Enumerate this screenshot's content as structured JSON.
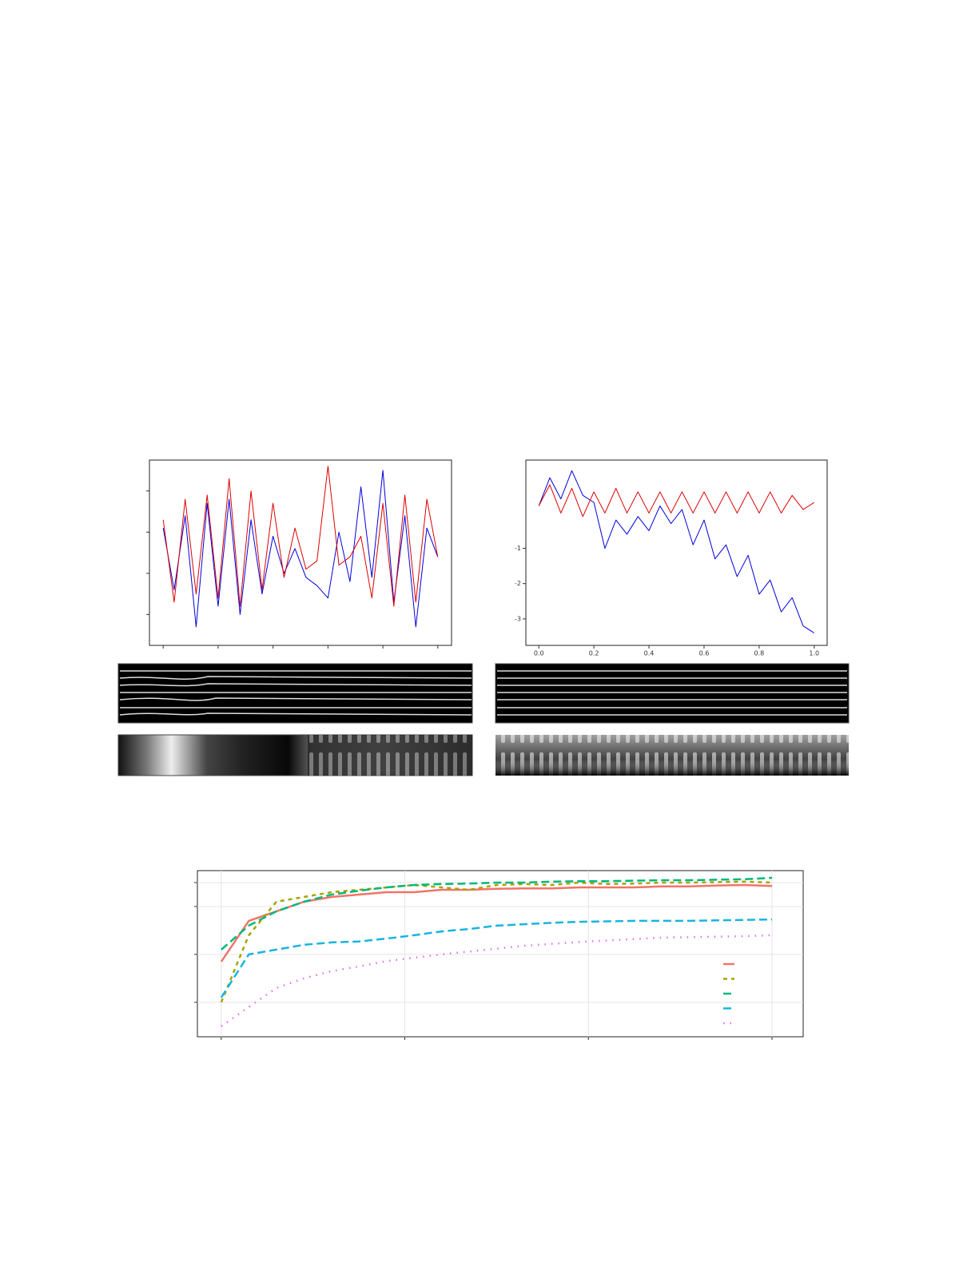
{
  "chart_data": [
    {
      "type": "line",
      "tick_labels": false,
      "x": [
        0,
        4,
        8,
        12,
        16,
        20,
        24,
        28,
        32,
        36,
        40,
        44,
        48,
        52,
        56,
        60,
        64,
        68,
        72,
        76,
        80,
        84,
        88,
        92,
        96,
        100
      ],
      "xlim": [
        -5,
        105
      ],
      "ylim": [
        -2.25,
        2.25
      ],
      "xticks": [
        0,
        20,
        40,
        60,
        80,
        100
      ],
      "yticks": [
        -1.5,
        -0.5,
        0.5,
        1.5
      ],
      "series": [
        {
          "color": "#0000dd",
          "values": [
            0.6,
            -0.9,
            0.9,
            -1.8,
            1.2,
            -1.3,
            1.3,
            -1.5,
            0.8,
            -1.0,
            0.4,
            -0.5,
            0.1,
            -0.6,
            -0.8,
            -1.1,
            0.5,
            -0.7,
            1.6,
            -0.6,
            2.0,
            -1.2,
            0.9,
            -1.8,
            0.6,
            -0.1
          ]
        },
        {
          "color": "#dd0000",
          "values": [
            0.8,
            -1.2,
            1.3,
            -1.0,
            1.4,
            -1.1,
            1.8,
            -1.3,
            1.5,
            -0.9,
            1.2,
            -0.6,
            0.6,
            -0.4,
            -0.2,
            2.1,
            -0.3,
            -0.1,
            0.4,
            -1.1,
            1.2,
            -1.3,
            1.4,
            -1.2,
            1.3,
            -0.1
          ]
        }
      ]
    },
    {
      "type": "line",
      "tick_labels": true,
      "x": [
        0,
        0.04,
        0.08,
        0.12,
        0.16,
        0.2,
        0.24,
        0.28,
        0.32,
        0.36,
        0.4,
        0.44,
        0.48,
        0.52,
        0.56,
        0.6,
        0.64,
        0.68,
        0.72,
        0.76,
        0.8,
        0.84,
        0.88,
        0.92,
        0.96,
        1.0
      ],
      "xlim": [
        -0.047,
        1.047
      ],
      "ylim": [
        -3.75,
        1.5
      ],
      "xticks": [
        {
          "value": 0,
          "label": "0.0"
        },
        0.2,
        0.4,
        0.6,
        0.8,
        {
          "value": 1,
          "label": "1.0"
        }
      ],
      "yticks": [
        -1,
        -2,
        -3
      ],
      "series": [
        {
          "color": "#0000dd",
          "values": [
            0.2,
            1.0,
            0.4,
            1.2,
            0.5,
            0.3,
            -1.0,
            -0.2,
            -0.6,
            -0.1,
            -0.5,
            0.2,
            -0.3,
            0.1,
            -0.9,
            -0.2,
            -1.3,
            -0.9,
            -1.8,
            -1.2,
            -2.3,
            -1.9,
            -2.8,
            -2.4,
            -3.2,
            -3.4
          ]
        },
        {
          "color": "#dd0000",
          "values": [
            0.2,
            0.8,
            0.0,
            0.7,
            -0.1,
            0.6,
            0.0,
            0.7,
            0.0,
            0.6,
            0.0,
            0.6,
            0.0,
            0.6,
            0.0,
            0.6,
            0.0,
            0.6,
            0.0,
            0.6,
            0.0,
            0.6,
            0.0,
            0.5,
            0.1,
            0.3
          ]
        }
      ]
    },
    {
      "type": "line",
      "tick_labels": false,
      "grid": true,
      "legend": "lower right",
      "x": [
        0,
        15,
        30,
        45,
        60,
        75,
        90,
        105,
        120,
        135,
        150,
        165,
        180,
        195,
        210,
        225,
        240,
        255,
        270,
        285,
        300
      ],
      "xlim": [
        -13,
        317
      ],
      "ylim": [
        57.8,
        92.5
      ],
      "xticks": [
        0,
        100,
        200,
        300
      ],
      "yticks": [
        65,
        75,
        85,
        90
      ],
      "series": [
        {
          "color": "#f07468",
          "dash": "solid",
          "values": [
            73.5,
            82,
            84,
            86,
            87,
            87.5,
            88,
            88,
            88.5,
            88.5,
            88.7,
            88.8,
            88.8,
            89,
            89,
            89,
            89.2,
            89.2,
            89.4,
            89.5,
            89.3
          ]
        },
        {
          "color": "#a3a500",
          "dash": "dash",
          "values": [
            65,
            79,
            86,
            87,
            88,
            88.5,
            89,
            89.5,
            89,
            88.5,
            89.5,
            89.7,
            89.5,
            90,
            89.7,
            89.8,
            90,
            90,
            90.1,
            90.2,
            90
          ]
        },
        {
          "color": "#00b87a",
          "dash": "longdash",
          "values": [
            76,
            81,
            84,
            86,
            87.5,
            88.3,
            89,
            89.5,
            89.7,
            89.8,
            90,
            90,
            90.2,
            90.3,
            90.3,
            90.4,
            90.5,
            90.5,
            90.6,
            90.7,
            91
          ]
        },
        {
          "color": "#18b4e0",
          "dash": "longdash",
          "values": [
            66,
            75,
            76,
            77,
            77.5,
            77.7,
            78.3,
            79,
            79.8,
            80.3,
            81,
            81.3,
            81.6,
            81.8,
            81.9,
            82,
            82,
            82,
            82.1,
            82.2,
            82.3
          ]
        },
        {
          "color": "#e36ef2",
          "dash": "dot",
          "values": [
            60,
            64,
            68,
            70,
            71.5,
            72.5,
            73.6,
            74.3,
            75,
            75.6,
            76.2,
            76.8,
            77.2,
            77.6,
            77.9,
            78.2,
            78.5,
            78.6,
            78.7,
            78.8,
            79
          ]
        }
      ]
    }
  ]
}
